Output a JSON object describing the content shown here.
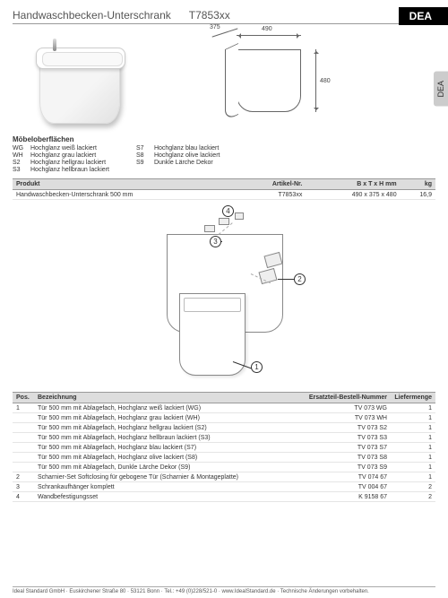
{
  "title": "Handwaschbecken-Unterschrank",
  "article_code": "T7853xx",
  "brand": "DEA",
  "side_tab": "DEA",
  "dimensions": {
    "width": "490",
    "depth": "375",
    "height": "480"
  },
  "surfaces": {
    "heading": "Möbeloberflächen",
    "left": [
      {
        "code": "WG",
        "label": "Hochglanz weiß lackiert"
      },
      {
        "code": "WH",
        "label": "Hochglanz grau lackiert"
      },
      {
        "code": "S2",
        "label": "Hochglanz hellgrau lackiert"
      },
      {
        "code": "S3",
        "label": "Hochglanz hellbraun lackiert"
      }
    ],
    "right": [
      {
        "code": "S7",
        "label": "Hochglanz blau lackiert"
      },
      {
        "code": "S8",
        "label": "Hochglanz olive lackiert"
      },
      {
        "code": "S9",
        "label": "Dunkle Lärche Dekor"
      }
    ]
  },
  "product_table": {
    "headers": {
      "product": "Produkt",
      "artno": "Artikel-Nr.",
      "dims": "B x T x H mm",
      "weight": "kg"
    },
    "rows": [
      {
        "product": "Handwaschbecken-Unterschrank 500 mm",
        "artno": "T7853xx",
        "dims": "490 x 375 x 480",
        "weight": "16,9"
      }
    ]
  },
  "parts_table": {
    "headers": {
      "pos": "Pos.",
      "desc": "Bezeichnung",
      "spare": "Ersatzteil-Bestell-Nummer",
      "qty": "Liefermenge"
    },
    "rows": [
      {
        "pos": "1",
        "desc": "Tür 500 mm mit Ablagefach, Hochglanz weiß lackiert (WG)",
        "spare": "TV 073 WG",
        "qty": "1"
      },
      {
        "pos": "",
        "desc": "Tür 500 mm mit Ablagefach, Hochglanz grau lackiert (WH)",
        "spare": "TV 073 WH",
        "qty": "1"
      },
      {
        "pos": "",
        "desc": "Tür 500 mm mit Ablagefach, Hochglanz hellgrau lackiert (S2)",
        "spare": "TV 073 S2",
        "qty": "1"
      },
      {
        "pos": "",
        "desc": "Tür 500 mm mit Ablagefach, Hochglanz hellbraun lackiert (S3)",
        "spare": "TV 073 S3",
        "qty": "1"
      },
      {
        "pos": "",
        "desc": "Tür 500 mm mit Ablagefach, Hochglanz blau lackiert (S7)",
        "spare": "TV 073 S7",
        "qty": "1"
      },
      {
        "pos": "",
        "desc": "Tür 500 mm mit Ablagefach, Hochglanz olive lackiert (S8)",
        "spare": "TV 073 S8",
        "qty": "1"
      },
      {
        "pos": "",
        "desc": "Tür 500 mm mit Ablagefach, Dunkle Lärche Dekor (S9)",
        "spare": "TV 073 S9",
        "qty": "1"
      },
      {
        "pos": "2",
        "desc": "Scharnier-Set Softclosing für gebogene Tür (Scharnier & Montageplatte)",
        "spare": "TV 074 67",
        "qty": "1"
      },
      {
        "pos": "3",
        "desc": "Schrankaufhänger komplett",
        "spare": "TV 004 67",
        "qty": "2"
      },
      {
        "pos": "4",
        "desc": "Wandbefestigungsset",
        "spare": "K 9158 67",
        "qty": "2"
      }
    ]
  },
  "footer": "Ideal Standard GmbH · Euskirchener Straße 80 · 53121 Bonn · Tel.: +49 (0)228/521-0 · www.IdealStandard.de · Technische Änderungen vorbehalten."
}
